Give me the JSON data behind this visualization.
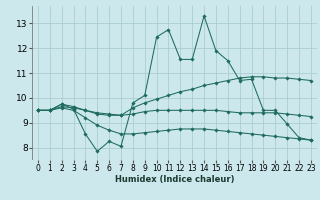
{
  "xlabel": "Humidex (Indice chaleur)",
  "xlim": [
    -0.5,
    23.5
  ],
  "ylim": [
    7.5,
    13.7
  ],
  "yticks": [
    8,
    9,
    10,
    11,
    12,
    13
  ],
  "xticks": [
    0,
    1,
    2,
    3,
    4,
    5,
    6,
    7,
    8,
    9,
    10,
    11,
    12,
    13,
    14,
    15,
    16,
    17,
    18,
    19,
    20,
    21,
    22,
    23
  ],
  "bg_color": "#cce8ec",
  "grid_color": "#aacdd4",
  "line_color": "#1e6b5e",
  "lines": [
    {
      "x": [
        0,
        1,
        2,
        3,
        4,
        5,
        6,
        7,
        8,
        9,
        10,
        11,
        12,
        13,
        14,
        15,
        16,
        17,
        18,
        19,
        20,
        21,
        22,
        23
      ],
      "y": [
        9.5,
        9.5,
        9.75,
        9.55,
        8.55,
        7.85,
        8.25,
        8.05,
        9.8,
        10.1,
        12.45,
        12.75,
        11.55,
        11.55,
        13.3,
        11.9,
        11.5,
        10.7,
        10.75,
        9.5,
        9.5,
        8.95,
        8.4,
        8.3
      ]
    },
    {
      "x": [
        0,
        1,
        2,
        3,
        4,
        5,
        6,
        7,
        8,
        9,
        10,
        11,
        12,
        13,
        14,
        15,
        16,
        17,
        18,
        19,
        20,
        21,
        22,
        23
      ],
      "y": [
        9.5,
        9.5,
        9.75,
        9.65,
        9.5,
        9.35,
        9.3,
        9.3,
        9.6,
        9.8,
        9.95,
        10.1,
        10.25,
        10.35,
        10.5,
        10.6,
        10.7,
        10.8,
        10.85,
        10.85,
        10.8,
        10.8,
        10.75,
        10.7
      ]
    },
    {
      "x": [
        0,
        1,
        2,
        3,
        4,
        5,
        6,
        7,
        8,
        9,
        10,
        11,
        12,
        13,
        14,
        15,
        16,
        17,
        18,
        19,
        20,
        21,
        22,
        23
      ],
      "y": [
        9.5,
        9.5,
        9.65,
        9.6,
        9.5,
        9.4,
        9.35,
        9.3,
        9.35,
        9.45,
        9.5,
        9.5,
        9.5,
        9.5,
        9.5,
        9.5,
        9.45,
        9.4,
        9.4,
        9.4,
        9.4,
        9.35,
        9.3,
        9.25
      ]
    },
    {
      "x": [
        0,
        1,
        2,
        3,
        4,
        5,
        6,
        7,
        8,
        9,
        10,
        11,
        12,
        13,
        14,
        15,
        16,
        17,
        18,
        19,
        20,
        21,
        22,
        23
      ],
      "y": [
        9.5,
        9.5,
        9.6,
        9.5,
        9.2,
        8.9,
        8.7,
        8.55,
        8.55,
        8.6,
        8.65,
        8.7,
        8.75,
        8.75,
        8.75,
        8.7,
        8.65,
        8.6,
        8.55,
        8.5,
        8.45,
        8.4,
        8.35,
        8.3
      ]
    }
  ]
}
